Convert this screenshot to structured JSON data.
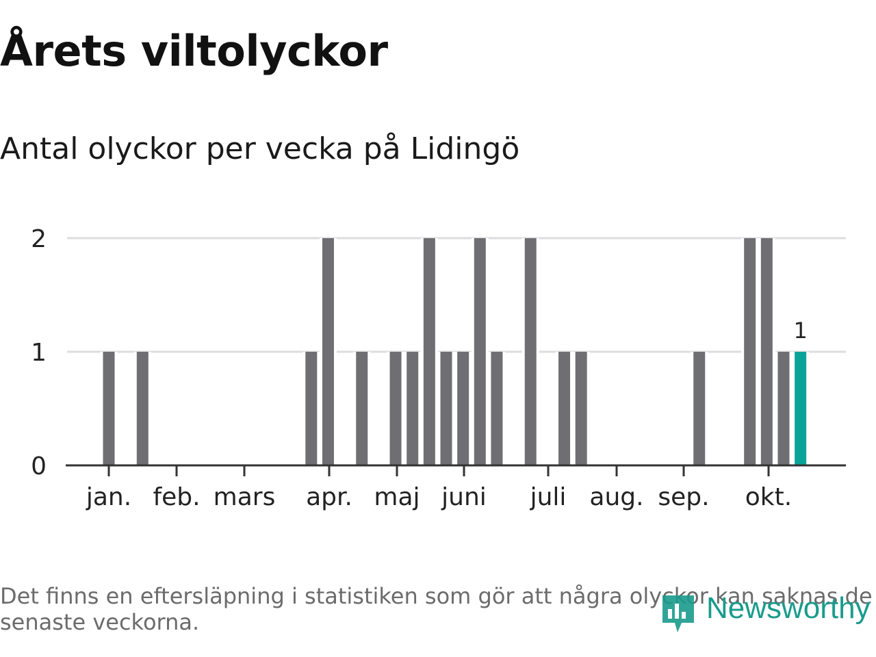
{
  "title": "Årets viltolyckor",
  "subtitle": "Antal olyckor per vecka på Lidingö",
  "note": "Det finns en eftersläpning i statistiken som gör att några olyckor kan saknas de senaste veckorna.",
  "brand": "Newsworthy",
  "colors": {
    "bar": "#6f6e73",
    "highlight": "#0aa39a",
    "grid": "#dddddd",
    "axis": "#333333",
    "brand": "#1a9b8c"
  },
  "chart_data": {
    "type": "bar",
    "x_unit": "week",
    "x": [
      2,
      4,
      14,
      15,
      17,
      19,
      20,
      21,
      22,
      23,
      24,
      25,
      27,
      29,
      30,
      37,
      40,
      41,
      42,
      43
    ],
    "values": [
      1,
      1,
      1,
      2,
      1,
      1,
      1,
      2,
      1,
      1,
      2,
      1,
      2,
      1,
      1,
      1,
      2,
      2,
      1,
      1
    ],
    "highlight_last": true,
    "highlight_label": "1",
    "month_ticks": [
      "jan.",
      "feb.",
      "mars",
      "apr.",
      "maj",
      "juni",
      "juli",
      "aug.",
      "sep.",
      "okt."
    ],
    "yticks": [
      0,
      1,
      2
    ],
    "ylim": [
      0,
      2
    ],
    "grid": true
  }
}
